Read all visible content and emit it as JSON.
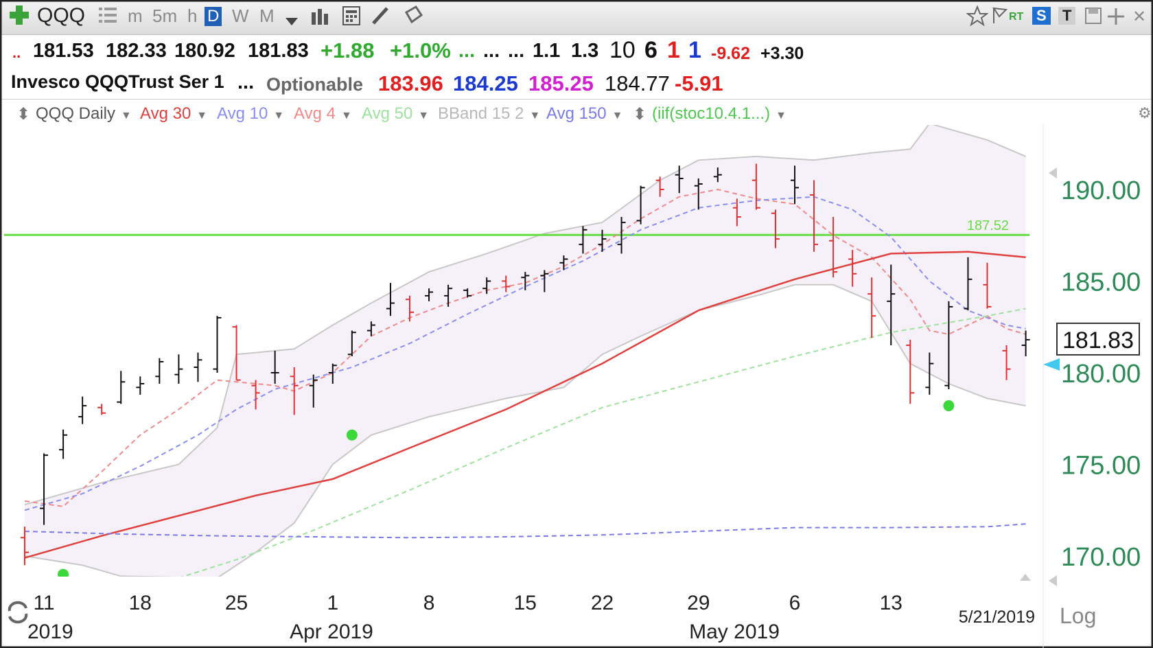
{
  "toolbar": {
    "symbol": "QQQ",
    "intervals": [
      "m",
      "5m",
      "h",
      "D",
      "W",
      "M"
    ],
    "active_interval": "D",
    "right_badges": [
      "RT",
      "S",
      "T"
    ]
  },
  "quote": {
    "open": "181.53",
    "high": "182.33",
    "low": "180.92",
    "close": "181.83",
    "change": "+1.88",
    "change_pct": "+1.0%",
    "dots1": "...",
    "dots2": "...",
    "dots3": "...",
    "v1": "1.1",
    "v2": "1.3",
    "n1": "10",
    "n2": "6",
    "n3": "1",
    "n4": "1",
    "neg": "-9.62",
    "pos": "+3.30",
    "lead_dots": "..",
    "name": "Invesco QQQTrust Ser 1",
    "name_dots": "...",
    "optionable": "Optionable",
    "ma1": "183.96",
    "ma2": "184.25",
    "ma3": "185.25",
    "ma4": "184.77",
    "ma_diff": "-5.91"
  },
  "legend": {
    "items": [
      {
        "label": "QQQ Daily",
        "color": "#555555"
      },
      {
        "label": "Avg 30",
        "color": "#e0403e"
      },
      {
        "label": "Avg 10",
        "color": "#8a8ef0"
      },
      {
        "label": "Avg 4",
        "color": "#f08a8a"
      },
      {
        "label": "Avg 50",
        "color": "#9ee29e"
      },
      {
        "label": "BBand 15 2",
        "color": "#b8b8b8"
      },
      {
        "label": "Avg 150",
        "color": "#7a7ae8"
      },
      {
        "label": "(iif(stoc10.4.1...)",
        "color": "#4cc84c"
      }
    ]
  },
  "chart_data": {
    "type": "ohlc",
    "title": "QQQ Daily",
    "ylim": [
      168.8,
      193.6
    ],
    "y_ticks": [
      "190.00",
      "185.00",
      "180.00",
      "175.00",
      "170.00"
    ],
    "y_tick_values": [
      190,
      185,
      180,
      175,
      170
    ],
    "x_day_labels": [
      {
        "label": "11",
        "index": 1
      },
      {
        "label": "18",
        "index": 6
      },
      {
        "label": "25",
        "index": 11
      },
      {
        "label": "1",
        "index": 16
      },
      {
        "label": "8",
        "index": 21
      },
      {
        "label": "15",
        "index": 26
      },
      {
        "label": "22",
        "index": 30
      },
      {
        "label": "29",
        "index": 35
      },
      {
        "label": "6",
        "index": 40
      },
      {
        "label": "13",
        "index": 45
      }
    ],
    "x_month_labels": [
      "2019",
      "Apr 2019",
      "May 2019"
    ],
    "last_date": "5/21/2019",
    "scale_label": "Log",
    "current_price": "181.83",
    "resistance_line": {
      "value": 187.52,
      "label": "187.52",
      "color": "#66dd44"
    },
    "bars": [
      {
        "o": 171.0,
        "h": 171.6,
        "l": 169.5,
        "c": 170.2,
        "up": false
      },
      {
        "o": 172.6,
        "h": 175.6,
        "l": 171.7,
        "c": 175.5,
        "up": true
      },
      {
        "o": 175.8,
        "h": 176.9,
        "l": 175.3,
        "c": 176.6,
        "up": true
      },
      {
        "o": 177.6,
        "h": 178.7,
        "l": 177.2,
        "c": 178.2,
        "up": true
      },
      {
        "o": 178.1,
        "h": 178.3,
        "l": 177.7,
        "c": 177.8,
        "up": false
      },
      {
        "o": 178.4,
        "h": 180.1,
        "l": 178.3,
        "c": 179.5,
        "up": true
      },
      {
        "o": 179.2,
        "h": 179.8,
        "l": 178.8,
        "c": 179.4,
        "up": true
      },
      {
        "o": 179.8,
        "h": 180.8,
        "l": 179.4,
        "c": 180.6,
        "up": true
      },
      {
        "o": 179.9,
        "h": 181.0,
        "l": 179.4,
        "c": 180.2,
        "up": true
      },
      {
        "o": 180.3,
        "h": 181.1,
        "l": 179.5,
        "c": 180.7,
        "up": true
      },
      {
        "o": 180.2,
        "h": 183.1,
        "l": 180.0,
        "c": 183.0,
        "up": true
      },
      {
        "o": 182.5,
        "h": 182.6,
        "l": 179.6,
        "c": 179.6,
        "up": false
      },
      {
        "o": 179.3,
        "h": 179.6,
        "l": 178.0,
        "c": 178.9,
        "up": false
      },
      {
        "o": 180.0,
        "h": 181.2,
        "l": 179.4,
        "c": 180.0,
        "up": true
      },
      {
        "o": 179.8,
        "h": 180.3,
        "l": 177.7,
        "c": 179.3,
        "up": false
      },
      {
        "o": 179.3,
        "h": 179.9,
        "l": 178.1,
        "c": 179.6,
        "up": true
      },
      {
        "o": 180.0,
        "h": 180.5,
        "l": 179.4,
        "c": 180.4,
        "up": true
      },
      {
        "o": 181.0,
        "h": 182.3,
        "l": 180.9,
        "c": 182.2,
        "up": true
      },
      {
        "o": 182.3,
        "h": 182.8,
        "l": 182.0,
        "c": 182.6,
        "up": true
      },
      {
        "o": 183.5,
        "h": 184.9,
        "l": 183.1,
        "c": 183.8,
        "up": true
      },
      {
        "o": 184.0,
        "h": 184.2,
        "l": 182.8,
        "c": 183.3,
        "up": false
      },
      {
        "o": 184.2,
        "h": 184.6,
        "l": 183.9,
        "c": 184.4,
        "up": true
      },
      {
        "o": 184.2,
        "h": 184.8,
        "l": 183.6,
        "c": 184.6,
        "up": true
      },
      {
        "o": 184.5,
        "h": 184.6,
        "l": 184.1,
        "c": 184.2,
        "up": true
      },
      {
        "o": 184.6,
        "h": 185.2,
        "l": 184.3,
        "c": 185.0,
        "up": true
      },
      {
        "o": 185.0,
        "h": 185.3,
        "l": 184.4,
        "c": 184.7,
        "up": false
      },
      {
        "o": 185.2,
        "h": 185.5,
        "l": 184.5,
        "c": 185.3,
        "up": true
      },
      {
        "o": 185.3,
        "h": 185.6,
        "l": 184.4,
        "c": 185.4,
        "up": true
      },
      {
        "o": 186.0,
        "h": 186.4,
        "l": 185.6,
        "c": 186.2,
        "up": true
      },
      {
        "o": 187.0,
        "h": 188.0,
        "l": 186.5,
        "c": 187.8,
        "up": true
      },
      {
        "o": 187.0,
        "h": 187.8,
        "l": 186.6,
        "c": 187.3,
        "up": true
      },
      {
        "o": 187.0,
        "h": 188.5,
        "l": 186.5,
        "c": 188.2,
        "up": true
      },
      {
        "o": 188.3,
        "h": 190.2,
        "l": 188.1,
        "c": 190.1,
        "up": true
      },
      {
        "o": 190.5,
        "h": 190.7,
        "l": 189.6,
        "c": 190.0,
        "up": false
      },
      {
        "o": 190.8,
        "h": 191.3,
        "l": 189.8,
        "c": 190.6,
        "up": true
      },
      {
        "o": 190.2,
        "h": 190.6,
        "l": 188.9,
        "c": 190.3,
        "up": true
      },
      {
        "o": 190.7,
        "h": 191.2,
        "l": 190.4,
        "c": 190.8,
        "up": true
      },
      {
        "o": 189.0,
        "h": 189.5,
        "l": 188.0,
        "c": 188.5,
        "up": false
      },
      {
        "o": 190.5,
        "h": 191.4,
        "l": 188.9,
        "c": 189.0,
        "up": false
      },
      {
        "o": 188.7,
        "h": 188.9,
        "l": 186.8,
        "c": 187.3,
        "up": false
      },
      {
        "o": 190.5,
        "h": 191.3,
        "l": 189.2,
        "c": 190.1,
        "up": true
      },
      {
        "o": 189.7,
        "h": 190.5,
        "l": 186.6,
        "c": 187.0,
        "up": false
      },
      {
        "o": 187.2,
        "h": 188.5,
        "l": 185.2,
        "c": 185.5,
        "up": false
      },
      {
        "o": 186.2,
        "h": 186.7,
        "l": 184.7,
        "c": 185.4,
        "up": false
      },
      {
        "o": 184.3,
        "h": 185.2,
        "l": 181.9,
        "c": 183.1,
        "up": false
      },
      {
        "o": 183.9,
        "h": 185.9,
        "l": 181.5,
        "c": 184.3,
        "up": true
      },
      {
        "o": 181.5,
        "h": 181.8,
        "l": 178.3,
        "c": 178.9,
        "up": false
      },
      {
        "o": 179.2,
        "h": 181.1,
        "l": 178.8,
        "c": 180.5,
        "up": true
      },
      {
        "o": 179.3,
        "h": 183.9,
        "l": 179.1,
        "c": 183.6,
        "up": true
      },
      {
        "o": 183.5,
        "h": 186.3,
        "l": 183.4,
        "c": 185.1,
        "up": true
      },
      {
        "o": 184.8,
        "h": 186.0,
        "l": 183.5,
        "c": 183.6,
        "up": false
      },
      {
        "o": 181.2,
        "h": 181.5,
        "l": 179.6,
        "c": 180.2,
        "up": false
      },
      {
        "o": 181.5,
        "h": 182.3,
        "l": 180.9,
        "c": 181.8,
        "up": true
      }
    ],
    "series": [
      {
        "key": "avg4",
        "color": "#f08a8a",
        "dash": true
      },
      {
        "key": "avg10",
        "color": "#8a8ef0",
        "dash": true
      },
      {
        "key": "avg30",
        "color": "#e0403e",
        "dash": false
      },
      {
        "key": "avg50",
        "color": "#9ee29e",
        "dash": true
      },
      {
        "key": "avg150",
        "color": "#7a7ae8",
        "dash": true
      }
    ],
    "avg150": [
      [
        0,
        171.35
      ],
      [
        5,
        171.2
      ],
      [
        10,
        171.1
      ],
      [
        15,
        171.05
      ],
      [
        20,
        171.0
      ],
      [
        25,
        171.05
      ],
      [
        30,
        171.15
      ],
      [
        35,
        171.35
      ],
      [
        40,
        171.55
      ],
      [
        45,
        171.55
      ],
      [
        50,
        171.6
      ],
      [
        52,
        171.75
      ]
    ],
    "avg50": [
      [
        8,
        168.8
      ],
      [
        11,
        169.8
      ],
      [
        15,
        171.4
      ],
      [
        20,
        173.6
      ],
      [
        25,
        175.9
      ],
      [
        30,
        178.1
      ],
      [
        35,
        179.5
      ],
      [
        40,
        180.9
      ],
      [
        45,
        182.2
      ],
      [
        50,
        183.1
      ],
      [
        52,
        183.5
      ]
    ],
    "avg30": [
      [
        0,
        169.9
      ],
      [
        4,
        171.1
      ],
      [
        8,
        172.2
      ],
      [
        12,
        173.3
      ],
      [
        16,
        174.2
      ],
      [
        20,
        175.9
      ],
      [
        25,
        178.0
      ],
      [
        30,
        180.5
      ],
      [
        35,
        183.4
      ],
      [
        40,
        185.1
      ],
      [
        45,
        186.5
      ],
      [
        49,
        186.6
      ],
      [
        52,
        186.3
      ]
    ],
    "avg10": [
      [
        0,
        172.5
      ],
      [
        3,
        173.4
      ],
      [
        6,
        174.9
      ],
      [
        9,
        176.6
      ],
      [
        11,
        178.0
      ],
      [
        13,
        179.1
      ],
      [
        15,
        179.7
      ],
      [
        17,
        180.3
      ],
      [
        20,
        181.6
      ],
      [
        23,
        183.2
      ],
      [
        26,
        184.7
      ],
      [
        29,
        186.1
      ],
      [
        32,
        187.8
      ],
      [
        35,
        189.0
      ],
      [
        38,
        189.4
      ],
      [
        41,
        189.6
      ],
      [
        43,
        188.9
      ],
      [
        45,
        187.4
      ],
      [
        47,
        185.0
      ],
      [
        49,
        183.4
      ],
      [
        51,
        182.6
      ],
      [
        52,
        182.4
      ]
    ],
    "avg4": [
      [
        0,
        173.0
      ],
      [
        2,
        172.7
      ],
      [
        4,
        174.6
      ],
      [
        6,
        176.6
      ],
      [
        8,
        178.0
      ],
      [
        10,
        179.6
      ],
      [
        11,
        179.5
      ],
      [
        13,
        179.3
      ],
      [
        14,
        179.0
      ],
      [
        16,
        180.0
      ],
      [
        18,
        182.0
      ],
      [
        20,
        183.0
      ],
      [
        22,
        183.8
      ],
      [
        24,
        184.5
      ],
      [
        26,
        184.9
      ],
      [
        28,
        185.8
      ],
      [
        30,
        187.0
      ],
      [
        32,
        188.4
      ],
      [
        34,
        189.6
      ],
      [
        36,
        190.0
      ],
      [
        38,
        189.5
      ],
      [
        40,
        189.2
      ],
      [
        42,
        187.5
      ],
      [
        44,
        186.3
      ],
      [
        46,
        184.0
      ],
      [
        47,
        182.3
      ],
      [
        48,
        182.1
      ],
      [
        50,
        183.1
      ],
      [
        51,
        182.4
      ],
      [
        52,
        182.1
      ]
    ],
    "bband_upper": [
      [
        0,
        172.8
      ],
      [
        4,
        174.0
      ],
      [
        8,
        175.0
      ],
      [
        10,
        177.0
      ],
      [
        11,
        181.0
      ],
      [
        14,
        181.3
      ],
      [
        16,
        182.6
      ],
      [
        18,
        183.8
      ],
      [
        21,
        185.5
      ],
      [
        24,
        186.5
      ],
      [
        27,
        187.6
      ],
      [
        30,
        188.2
      ],
      [
        33,
        190.5
      ],
      [
        35,
        191.6
      ],
      [
        38,
        191.8
      ],
      [
        41,
        191.6
      ],
      [
        44,
        192.0
      ],
      [
        46,
        192.2
      ],
      [
        47,
        193.6
      ],
      [
        48,
        193.3
      ],
      [
        50,
        192.7
      ],
      [
        52,
        191.8
      ]
    ],
    "bband_lower": [
      [
        0,
        170.0
      ],
      [
        3,
        169.5
      ],
      [
        5,
        168.9
      ],
      [
        10,
        168.8
      ],
      [
        12,
        170.2
      ],
      [
        14,
        171.8
      ],
      [
        16,
        175.0
      ],
      [
        18,
        176.6
      ],
      [
        21,
        177.6
      ],
      [
        25,
        178.6
      ],
      [
        28,
        179.2
      ],
      [
        30,
        181.0
      ],
      [
        32,
        182.0
      ],
      [
        35,
        183.4
      ],
      [
        38,
        184.2
      ],
      [
        40,
        184.8
      ],
      [
        42,
        184.8
      ],
      [
        44,
        183.9
      ],
      [
        46,
        180.5
      ],
      [
        48,
        179.4
      ],
      [
        50,
        178.6
      ],
      [
        52,
        178.2
      ]
    ],
    "signal_dots": [
      {
        "index": 2,
        "value": 169.0
      },
      {
        "index": 17,
        "value": 176.6
      },
      {
        "index": 48,
        "value": 178.2
      }
    ]
  }
}
